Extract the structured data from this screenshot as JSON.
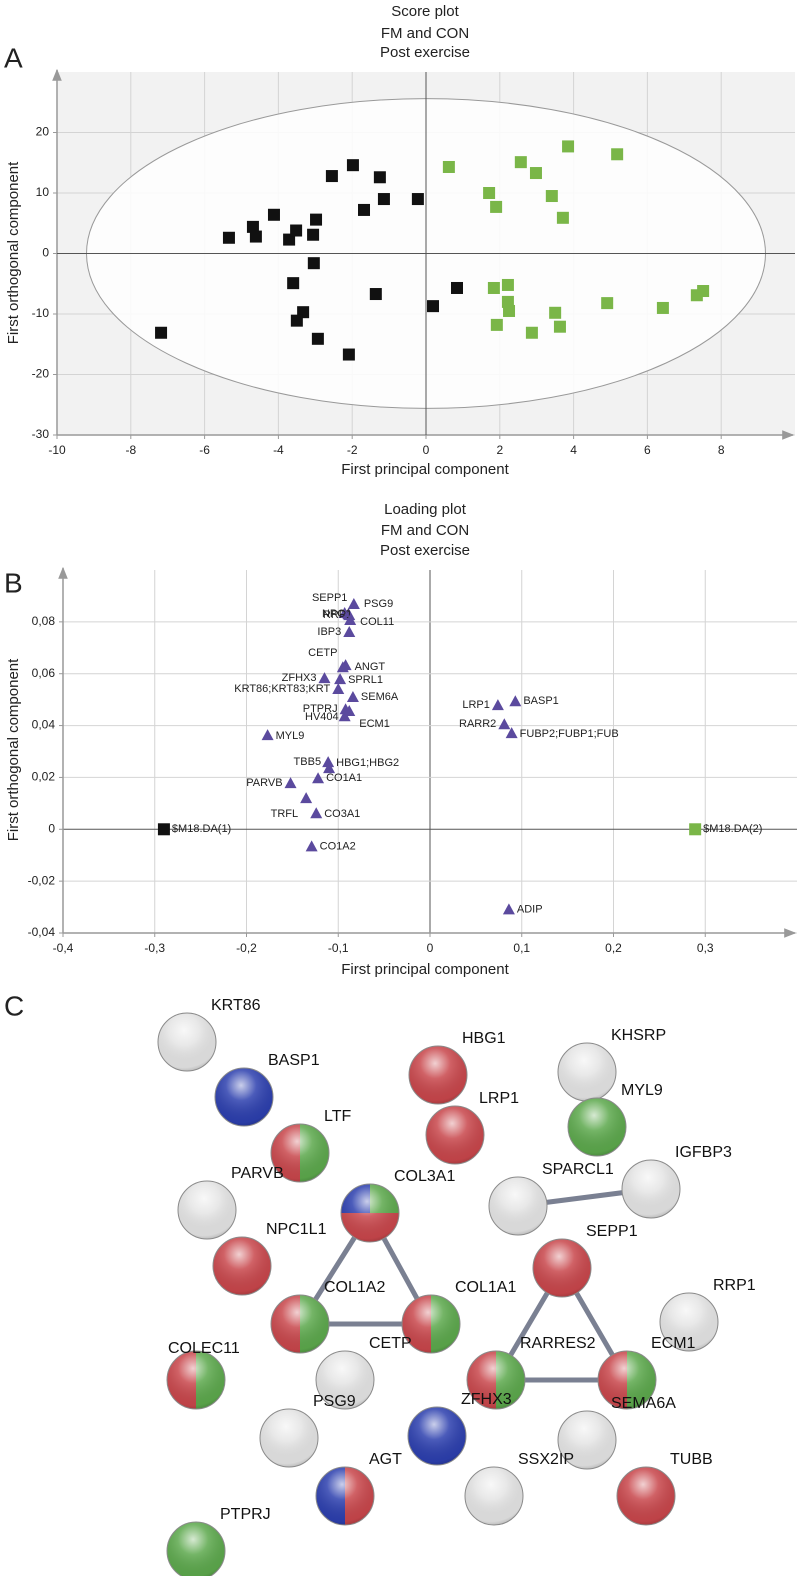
{
  "chart_data": [
    {
      "type": "scatter",
      "panel_label": "A",
      "title": [
        "Score plot",
        "FM and CON",
        "Post exercise"
      ],
      "xlabel": "First principal component",
      "ylabel": "First orthogonal component",
      "xlim": [
        -10,
        10
      ],
      "ylim": [
        -30,
        30
      ],
      "xticks": [
        -10,
        -8,
        -6,
        -4,
        -2,
        0,
        2,
        4,
        6,
        8
      ],
      "yticks": [
        -30,
        -20,
        -10,
        0,
        10,
        20
      ],
      "grid": true,
      "background": "#f2f2f2",
      "ellipse_radii": [
        9.2,
        25.6
      ],
      "series": [
        {
          "color": "#111111",
          "marker": "square",
          "x": [
            -7.18,
            -5.34,
            -4.69,
            -4.61,
            -4.12,
            -3.71,
            -3.52,
            -3.06,
            -2.98,
            -3.04,
            -3.6,
            -3.33,
            -3.5,
            -2.93,
            -2.55,
            -1.98,
            -1.68,
            -1.25,
            -1.14,
            -1.36,
            -2.09,
            -0.22,
            0.19,
            0.84
          ],
          "values": [
            -13.1,
            2.6,
            4.4,
            2.8,
            6.4,
            2.3,
            3.8,
            3.1,
            5.6,
            -1.6,
            -4.9,
            -9.7,
            -11.1,
            -14.1,
            12.8,
            14.6,
            7.2,
            12.6,
            9.0,
            -6.7,
            -16.7,
            9.0,
            -8.7,
            -5.7
          ]
        },
        {
          "color": "#7ab648",
          "marker": "square",
          "x": [
            0.62,
            2.57,
            2.98,
            3.85,
            5.18,
            1.71,
            1.9,
            3.41,
            3.71,
            1.84,
            2.22,
            2.22,
            2.25,
            1.92,
            2.87,
            3.5,
            3.63,
            4.91,
            6.42,
            7.34,
            7.51
          ],
          "values": [
            14.3,
            15.1,
            13.3,
            17.7,
            16.4,
            10.0,
            7.7,
            9.5,
            5.9,
            -5.7,
            -5.2,
            -8.0,
            -9.5,
            -11.8,
            -13.1,
            -9.8,
            -12.1,
            -8.2,
            -9.0,
            -6.9,
            -6.2
          ]
        }
      ]
    },
    {
      "type": "scatter",
      "panel_label": "B",
      "title": [
        "Loading plot",
        "FM and CON",
        "Post exercise"
      ],
      "xlabel": "First principal component",
      "ylabel": "First orthogonal component",
      "xlim": [
        -0.4,
        0.4
      ],
      "ylim": [
        -0.04,
        0.1
      ],
      "xticks": [
        {
          "value": -0.4,
          "label": "-0,4"
        },
        {
          "value": -0.3,
          "label": "-0,3"
        },
        {
          "value": -0.2,
          "label": "-0,2"
        },
        {
          "value": -0.1,
          "label": "-0,1"
        },
        0,
        {
          "value": 0.1,
          "label": "0,1"
        },
        {
          "value": 0.2,
          "label": "0,2"
        },
        {
          "value": 0.3,
          "label": "0,3"
        }
      ],
      "yticks": [
        {
          "value": -0.04,
          "label": "-0,04"
        },
        {
          "value": -0.02,
          "label": "-0,02"
        },
        0,
        {
          "value": 0.02,
          "label": "0,02"
        },
        {
          "value": 0.04,
          "label": "0,04"
        },
        {
          "value": 0.06,
          "label": "0,06"
        },
        {
          "value": 0.08,
          "label": "0,08"
        }
      ],
      "grid": true,
      "background": "#ffffff",
      "series": [
        {
          "color": "#5b4a9e",
          "marker": "triangle",
          "labels": [
            "SEPP1",
            "PSG9",
            "NPC1",
            "RRP1",
            "COL11",
            "IBP3",
            "CETP",
            "ANGT",
            "ZFHX3",
            "SPRL1",
            "KRT86;KRT83;KRT",
            "SEM6A",
            "PTPRJ",
            "HV404",
            "ECM1",
            "MYL9",
            "TBB5",
            "HBG1;HBG2",
            "CO1A1",
            "PARVB",
            "TRFL",
            "CO3A1",
            "CO1A2",
            "LRP1",
            "BASP1",
            "RARR2",
            "FUBP2;FUBP1;FUB",
            "ADIP"
          ],
          "x": [
            -0.093,
            -0.083,
            -0.089,
            -0.088,
            -0.087,
            -0.088,
            -0.095,
            -0.092,
            -0.115,
            -0.098,
            -0.1,
            -0.084,
            -0.092,
            -0.093,
            -0.088,
            -0.177,
            -0.11,
            -0.111,
            -0.122,
            -0.152,
            -0.135,
            -0.124,
            -0.129,
            0.074,
            0.093,
            0.081,
            0.089,
            0.086
          ],
          "values": [
            0.0834,
            0.0869,
            0.083,
            0.0826,
            0.0807,
            0.0761,
            0.0625,
            0.0633,
            0.0583,
            0.0579,
            0.0541,
            0.051,
            0.0463,
            0.0436,
            0.0456,
            0.0363,
            0.0236,
            0.0259,
            0.0197,
            0.0178,
            0.012,
            0.0062,
            -0.0066,
            0.0479,
            0.0494,
            0.0405,
            0.0371,
            -0.0309
          ]
        },
        {
          "color": "#111111",
          "marker": "square",
          "labels": [
            "$M18.DA(1)"
          ],
          "x": [
            -0.29
          ],
          "values": [
            0
          ]
        },
        {
          "color": "#7ab648",
          "marker": "square",
          "labels": [
            "$M18.DA(2)"
          ],
          "x": [
            0.289
          ],
          "values": [
            0
          ]
        }
      ]
    }
  ],
  "network": {
    "panel_label": "C",
    "nodes": [
      {
        "label": "KRT86",
        "colors": [
          "#e4e4e4"
        ]
      },
      {
        "label": "BASP1",
        "colors": [
          "#2c3fae"
        ]
      },
      {
        "label": "LTF",
        "colors": [
          "#c8464b",
          "#5ca84c"
        ]
      },
      {
        "label": "PARVB",
        "colors": [
          "#e4e4e4"
        ]
      },
      {
        "label": "COL3A1",
        "colors": [
          "#2c3fae",
          "#5ca84c",
          "#c8464b"
        ]
      },
      {
        "label": "HBG1",
        "colors": [
          "#c8464b"
        ]
      },
      {
        "label": "LRP1",
        "colors": [
          "#c8464b"
        ]
      },
      {
        "label": "KHSRP",
        "colors": [
          "#e4e4e4"
        ]
      },
      {
        "label": "MYL9",
        "colors": [
          "#5ca84c"
        ]
      },
      {
        "label": "IGFBP3",
        "colors": [
          "#e4e4e4"
        ]
      },
      {
        "label": "SPARCL1",
        "colors": [
          "#e4e4e4"
        ]
      },
      {
        "label": "NPC1L1",
        "colors": [
          "#c8464b"
        ]
      },
      {
        "label": "SEPP1",
        "colors": [
          "#c8464b"
        ]
      },
      {
        "label": "COL1A2",
        "colors": [
          "#c8464b",
          "#5ca84c"
        ]
      },
      {
        "label": "COL1A1",
        "colors": [
          "#c8464b",
          "#5ca84c"
        ]
      },
      {
        "label": "RRP1",
        "colors": [
          "#e4e4e4"
        ]
      },
      {
        "label": "COLEC11",
        "colors": [
          "#c8464b",
          "#5ca84c"
        ]
      },
      {
        "label": "CETP",
        "colors": [
          "#e4e4e4"
        ]
      },
      {
        "label": "RARRES2",
        "colors": [
          "#c8464b",
          "#5ca84c"
        ]
      },
      {
        "label": "ECM1",
        "colors": [
          "#c8464b",
          "#5ca84c"
        ]
      },
      {
        "label": "SEMA6A",
        "colors": [
          "#e4e4e4"
        ]
      },
      {
        "label": "PSG9",
        "colors": [
          "#e4e4e4"
        ]
      },
      {
        "label": "ZFHX3",
        "colors": [
          "#2c3fae"
        ]
      },
      {
        "label": "SSX2IP",
        "colors": [
          "#e4e4e4"
        ]
      },
      {
        "label": "TUBB",
        "colors": [
          "#c8464b"
        ]
      },
      {
        "label": "AGT",
        "colors": [
          "#2c3fae",
          "#c8464b"
        ]
      },
      {
        "label": "PTPRJ",
        "colors": [
          "#5ca84c"
        ]
      }
    ],
    "edges": [
      [
        4,
        13
      ],
      [
        4,
        14
      ],
      [
        13,
        14
      ],
      [
        10,
        9
      ],
      [
        12,
        18
      ],
      [
        12,
        19
      ],
      [
        18,
        19
      ]
    ]
  }
}
